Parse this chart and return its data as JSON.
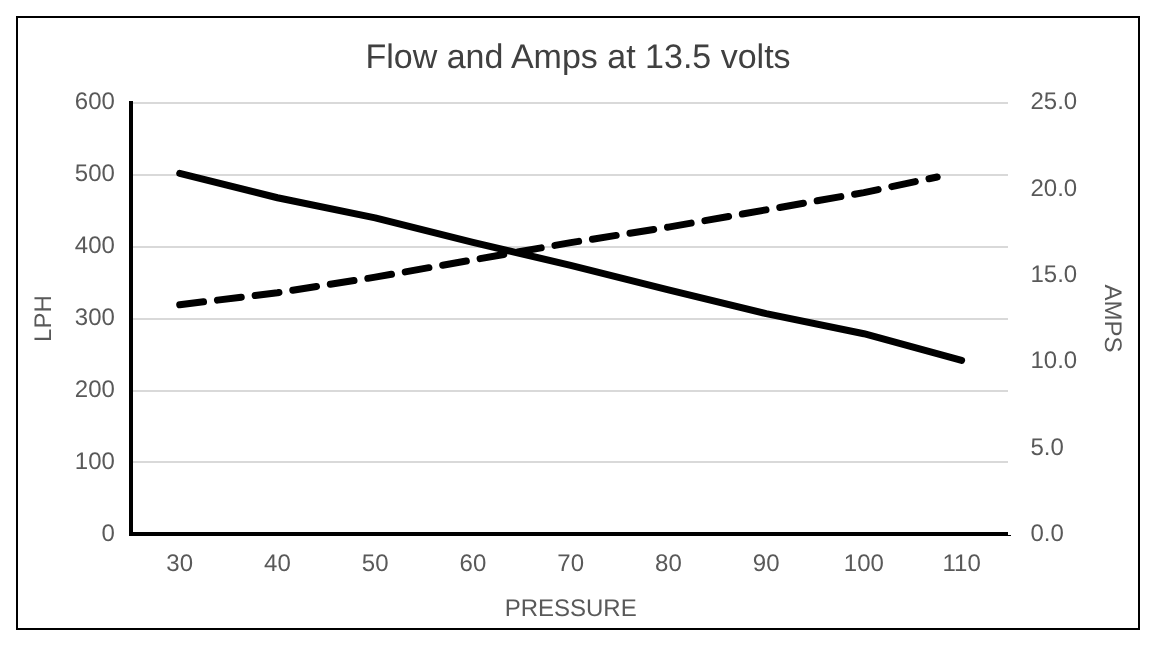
{
  "chart_data": {
    "type": "line",
    "title": "Flow and Amps at 13.5 volts",
    "xlabel": "PRESSURE",
    "ylabel": "LPH",
    "y2label": "AMPS",
    "xlim": [
      25,
      115
    ],
    "xticks": [
      30,
      40,
      50,
      60,
      70,
      80,
      90,
      100,
      110
    ],
    "ylim": [
      0,
      600
    ],
    "yticks": [
      0,
      100,
      200,
      300,
      400,
      500,
      600
    ],
    "y2lim": [
      0,
      25
    ],
    "y2ticks": [
      {
        "value": 0,
        "label": "0.0"
      },
      {
        "value": 5,
        "label": "5.0"
      },
      {
        "value": 10,
        "label": "10.0"
      },
      {
        "value": 15,
        "label": "15.0"
      },
      {
        "value": 20,
        "label": "20.0"
      },
      {
        "value": 25,
        "label": "25.0"
      }
    ],
    "grid": "y",
    "legend": false,
    "marker": "none",
    "series": [
      {
        "color": "#000000",
        "line_style": "solid",
        "x": [
          30,
          40,
          50,
          60,
          70,
          80,
          90,
          100,
          110
        ],
        "values": [
          502,
          468,
          440,
          406,
          374,
          340,
          307,
          279,
          242
        ]
      },
      {
        "color": "#000000",
        "line_style": "dashed",
        "axis": "y2",
        "x": [
          30,
          40,
          50,
          60,
          70,
          80,
          90,
          100,
          107.5
        ],
        "values": [
          13.3,
          14.0,
          14.9,
          15.9,
          16.9,
          17.8,
          18.8,
          19.8,
          20.7
        ]
      }
    ]
  }
}
